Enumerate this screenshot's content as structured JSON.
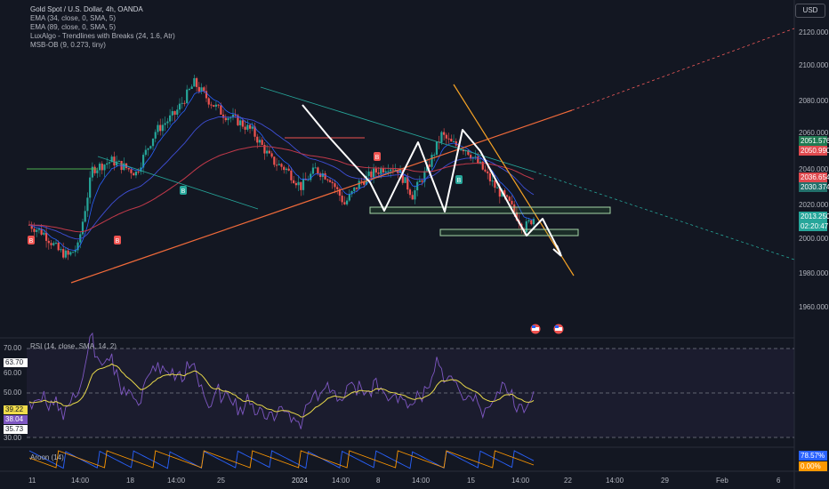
{
  "legend": {
    "title": "Gold Spot / U.S. Dollar, 4h, OANDA",
    "lines": [
      "EMA (34, close, 0, SMA, 5)",
      "EMA (89, close, 0, SMA, 5)",
      "LuxAlgo - Trendlines with Breaks (24, 1.6, Atr)",
      "MSB-OB (9, 0.273, tiny)"
    ]
  },
  "currency_button": "USD",
  "price_axis": {
    "ticks": [
      "2120.000",
      "2100.000",
      "2080.000",
      "2060.000",
      "2040.000",
      "2020.000",
      "2000.000",
      "1980.000",
      "1960.000"
    ],
    "badges": [
      {
        "text": "2051.576",
        "color": "#1f7a52"
      },
      {
        "text": "2050.990",
        "color": "#e04a4f"
      },
      {
        "text": "2036.654",
        "color": "#e04a4f"
      },
      {
        "text": "2030.374",
        "color": "#22706b"
      },
      {
        "text": "2013.250",
        "color": "#26a69a"
      },
      {
        "text": "02:20:47",
        "color": "#26a69a"
      }
    ]
  },
  "rsi": {
    "label": "RSI (14, close, SMA, 14, 2)",
    "ticks": [
      "70.00",
      "60.00",
      "50.00",
      "30.00"
    ],
    "badges": [
      {
        "text": "63.70",
        "bg": "#ffffff",
        "fg": "#131722"
      },
      {
        "text": "39.22",
        "bg": "#f0dc4a",
        "fg": "#131722"
      },
      {
        "text": "38.04",
        "bg": "#7e57c2",
        "fg": "#ffffff"
      },
      {
        "text": "35.73",
        "bg": "#ffffff",
        "fg": "#131722"
      }
    ]
  },
  "aroon": {
    "label": "Aroon (14)",
    "badges": [
      {
        "text": "78.57%",
        "color": "#2962ff"
      },
      {
        "text": "0.00%",
        "color": "#ff9800"
      }
    ]
  },
  "time_axis": [
    "11",
    "14:00",
    "18",
    "14:00",
    "25",
    "2024",
    "14:00",
    "8",
    "14:00",
    "15",
    "14:00",
    "22",
    "14:00",
    "29",
    "Feb",
    "6"
  ],
  "candle_markers": [
    "B",
    "B",
    "B",
    "B",
    "B"
  ],
  "chart_data": {
    "type": "candlestick",
    "symbol": "Gold Spot / U.S. Dollar",
    "interval": "4h",
    "ylim": [
      1950,
      2130
    ],
    "price_ticks": [
      2120,
      2100,
      2080,
      2060,
      2040,
      2020,
      2000,
      1980,
      1960
    ],
    "key_prices": {
      "current": 2013.25,
      "ema34": 2036.654,
      "ema89": 2030.374
    },
    "bull_color": "#26a69a",
    "bear_color": "#ef5350"
  }
}
